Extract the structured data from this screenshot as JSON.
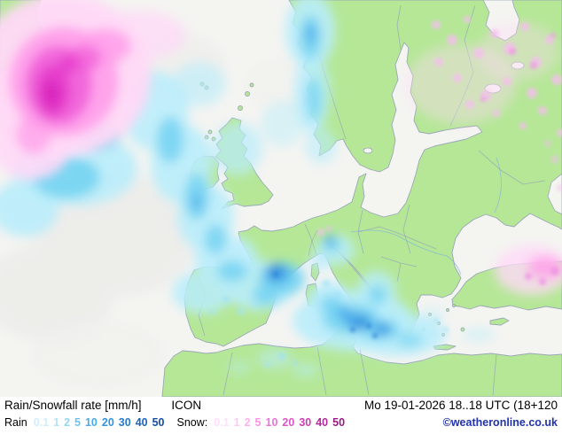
{
  "map": {
    "colors": {
      "sea": "#f4f4f1",
      "land": "#b5e797",
      "coast": "#9aa8b6",
      "border": "#93a5b8",
      "river": "#85b5da"
    }
  },
  "legend": {
    "title": "Rain/Snowfall rate [mm/h]",
    "model": "ICON",
    "datetime": "Mo 19-01-2026 18..18 UTC (18+120",
    "rain_label": "Rain",
    "snow_label": "Snow:",
    "rain_scale": [
      {
        "value": "0.1",
        "color": "#cfeefd"
      },
      {
        "value": "1",
        "color": "#aee4fb"
      },
      {
        "value": "2",
        "color": "#8ed7f7"
      },
      {
        "value": "5",
        "color": "#69c4f2"
      },
      {
        "value": "10",
        "color": "#47abe9"
      },
      {
        "value": "20",
        "color": "#3193dd"
      },
      {
        "value": "30",
        "color": "#237bcd"
      },
      {
        "value": "40",
        "color": "#1a64bc"
      },
      {
        "value": "50",
        "color": "#124ea8"
      }
    ],
    "snow_scale": [
      {
        "value": "0.1",
        "color": "#ffe0fa"
      },
      {
        "value": "1",
        "color": "#ffc9f5"
      },
      {
        "value": "2",
        "color": "#ffafef"
      },
      {
        "value": "5",
        "color": "#fb8fe6"
      },
      {
        "value": "10",
        "color": "#ef70d9"
      },
      {
        "value": "20",
        "color": "#de55c8"
      },
      {
        "value": "30",
        "color": "#c93db4"
      },
      {
        "value": "40",
        "color": "#b02a9e"
      },
      {
        "value": "50",
        "color": "#951b86"
      }
    ],
    "copyright": "©weatheronline.co.uk"
  }
}
